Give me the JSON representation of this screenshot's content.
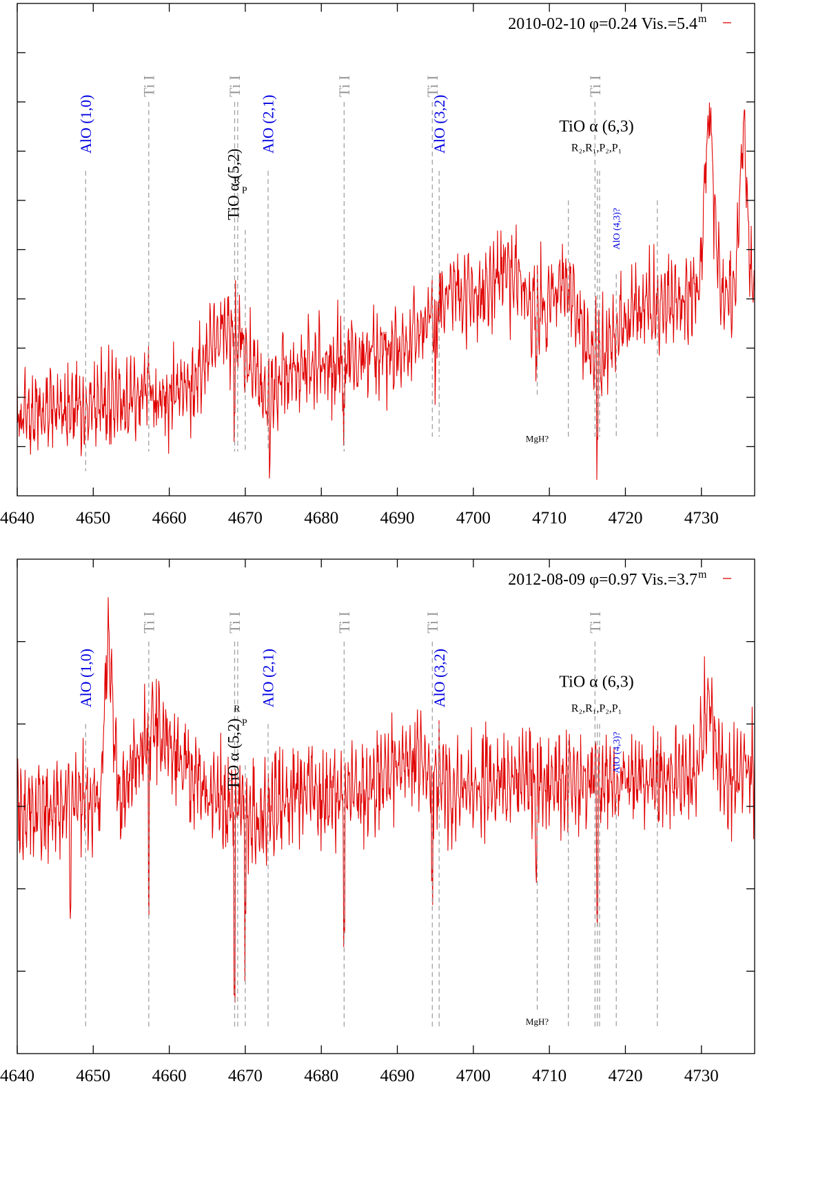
{
  "chart_data": [
    {
      "type": "line",
      "title": "2010-02-10 φ=0.24 Vis.=5.4",
      "title_superscript": "m",
      "legend_position": "top-right",
      "series_color": "#e00000",
      "xlim": [
        4640,
        4737
      ],
      "ylim": [
        0,
        10
      ],
      "grid": false,
      "x_ticks": [
        4640,
        4650,
        4660,
        4670,
        4680,
        4690,
        4700,
        4710,
        4720,
        4730
      ],
      "x_tick_labels": [
        "4640",
        "4650",
        "4660",
        "4670",
        "4680",
        "4690",
        "4700",
        "4710",
        "4720",
        "4730"
      ],
      "y_ticks": [
        1,
        2,
        3,
        4,
        5,
        6,
        7,
        8,
        9
      ],
      "series_shape": {
        "start": 1.6,
        "end": 4.2,
        "noise": 1.0,
        "seed": 7
      },
      "series_bumps": [
        {
          "x": 4667.5,
          "w": 2.2,
          "a": 1.1
        },
        {
          "x": 4673.0,
          "w": 1.0,
          "a": -0.6
        },
        {
          "x": 4697.5,
          "w": 2.5,
          "a": 1.0
        },
        {
          "x": 4704.5,
          "w": 2.5,
          "a": 1.2
        },
        {
          "x": 4712.0,
          "w": 1.5,
          "a": 0.8
        },
        {
          "x": 4716.5,
          "w": 2.0,
          "a": -0.8
        },
        {
          "x": 4731.0,
          "w": 0.6,
          "a": 3.5
        },
        {
          "x": 4735.5,
          "w": 0.5,
          "a": 3.2
        }
      ],
      "series_dips": [
        {
          "x": 4668.6,
          "d": 2.2
        },
        {
          "x": 4673.2,
          "d": 1.2
        },
        {
          "x": 4683.0,
          "d": 1.6
        },
        {
          "x": 4695.0,
          "d": 1.3
        },
        {
          "x": 4708.3,
          "d": 1.3
        },
        {
          "x": 4716.3,
          "d": 1.6
        }
      ],
      "line_markers": [
        {
          "x": 4649.0,
          "y_top": 6.6,
          "y_bottom": 0.5,
          "label": "AlO (1,0)",
          "label_y": 6.95,
          "color": "#0000e0",
          "size": 22,
          "rotate": true
        },
        {
          "x": 4657.3,
          "y_top": 8.0,
          "y_bottom": 0.9,
          "label": "Ti I",
          "label_y": 8.1,
          "color": "#999999",
          "size": 22,
          "rotate": true
        },
        {
          "x": 4668.6,
          "y_top": 8.0,
          "y_bottom": 0.9,
          "label": "Ti I",
          "label_y": 8.1,
          "color": "#999999",
          "size": 22,
          "rotate": true
        },
        {
          "x": 4669.0,
          "y_top": 8.0,
          "y_bottom": 0.9,
          "label": "",
          "label_y": 0,
          "color": "#999999",
          "size": 0,
          "rotate": false
        },
        {
          "x": 4670.0,
          "y_top": 5.4,
          "y_bottom": 0.9,
          "label": "",
          "label_y": 0,
          "color": "#999999",
          "size": 0,
          "rotate": false
        },
        {
          "x": 4673.0,
          "y_top": 6.6,
          "y_bottom": 0.9,
          "label": "AlO (2,1)",
          "label_y": 6.95,
          "color": "#0000e0",
          "size": 22,
          "rotate": true
        },
        {
          "x": 4683.0,
          "y_top": 8.0,
          "y_bottom": 0.9,
          "label": "Ti I",
          "label_y": 8.1,
          "color": "#999999",
          "size": 22,
          "rotate": true
        },
        {
          "x": 4694.6,
          "y_top": 8.0,
          "y_bottom": 1.2,
          "label": "Ti I",
          "label_y": 8.1,
          "color": "#999999",
          "size": 22,
          "rotate": true
        },
        {
          "x": 4695.5,
          "y_top": 6.6,
          "y_bottom": 1.2,
          "label": "AlO (3,2)",
          "label_y": 6.95,
          "color": "#0000e0",
          "size": 22,
          "rotate": true
        },
        {
          "x": 4708.4,
          "y_top": 4.5,
          "y_bottom": 2.0,
          "label": "",
          "label_y": 0,
          "color": "#999999",
          "size": 0,
          "rotate": false
        },
        {
          "x": 4712.5,
          "y_top": 6.0,
          "y_bottom": 1.2,
          "label": "",
          "label_y": 0,
          "color": "#999999",
          "size": 0,
          "rotate": false
        },
        {
          "x": 4716.0,
          "y_top": 8.0,
          "y_bottom": 1.2,
          "label": "Ti I",
          "label_y": 8.1,
          "color": "#999999",
          "size": 22,
          "rotate": true
        },
        {
          "x": 4716.3,
          "y_top": 6.6,
          "y_bottom": 1.2,
          "label": "",
          "label_y": 0,
          "color": "#999999",
          "size": 0,
          "rotate": false
        },
        {
          "x": 4716.6,
          "y_top": 6.6,
          "y_bottom": 1.2,
          "label": "",
          "label_y": 0,
          "color": "#999999",
          "size": 0,
          "rotate": false
        },
        {
          "x": 4718.8,
          "y_top": 4.5,
          "y_bottom": 1.2,
          "label": "AlO (4,3)?",
          "label_y": 5.0,
          "color": "#0000e0",
          "size": 14,
          "rotate": true
        },
        {
          "x": 4724.2,
          "y_top": 6.0,
          "y_bottom": 1.2,
          "label": "",
          "label_y": 0,
          "color": "#999999",
          "size": 0,
          "rotate": false
        }
      ],
      "annotations": [
        {
          "id": "tio52",
          "text": "TiO α (5,2)",
          "x": 4668.4,
          "y": 5.6,
          "rotate": true,
          "size": 23,
          "color": "#000000"
        },
        {
          "id": "tio52-r",
          "text": "R",
          "x": 4668.9,
          "y": 6.35,
          "rotate": false,
          "size": 14,
          "color": "#000000"
        },
        {
          "id": "tio52-p",
          "text": "P",
          "x": 4669.9,
          "y": 6.15,
          "rotate": false,
          "size": 14,
          "color": "#000000"
        },
        {
          "id": "tio63",
          "text": "TiO α (6,3)",
          "x": 4716.2,
          "y": 7.4,
          "rotate": false,
          "size": 24,
          "color": "#000000"
        },
        {
          "id": "tio63-branches",
          "text": "R₂,R₁,P₂,P₁",
          "x": 4716.2,
          "y": 7.0,
          "rotate": false,
          "size": 16,
          "color": "#000000"
        },
        {
          "id": "mgh",
          "text": "MgH?",
          "x": 4708.4,
          "y": 1.1,
          "rotate": false,
          "size": 13,
          "color": "#000000"
        }
      ]
    },
    {
      "type": "line",
      "title": "2012-08-09 φ=0.97 Vis.=3.7",
      "title_superscript": "m",
      "legend_position": "top-right",
      "series_color": "#e00000",
      "xlim": [
        4640,
        4737
      ],
      "ylim": [
        0,
        6
      ],
      "grid": false,
      "x_ticks": [
        4640,
        4650,
        4660,
        4670,
        4680,
        4690,
        4700,
        4710,
        4720,
        4730
      ],
      "x_tick_labels": [
        "4640",
        "4650",
        "4660",
        "4670",
        "4680",
        "4690",
        "4700",
        "4710",
        "4720",
        "4730"
      ],
      "y_ticks": [
        1,
        2,
        3,
        4,
        5
      ],
      "series_shape": {
        "start": 3.0,
        "end": 3.4,
        "noise": 0.65,
        "seed": 23
      },
      "series_bumps": [
        {
          "x": 4658.5,
          "w": 3.0,
          "a": 0.8
        },
        {
          "x": 4652.0,
          "w": 0.5,
          "a": 1.8
        },
        {
          "x": 4692.0,
          "w": 2.5,
          "a": 0.4
        },
        {
          "x": 4731.0,
          "w": 0.8,
          "a": 0.8
        },
        {
          "x": 4672.0,
          "w": 2.0,
          "a": -0.3
        }
      ],
      "series_dips": [
        {
          "x": 4647.0,
          "d": 1.1
        },
        {
          "x": 4657.3,
          "d": 2.4
        },
        {
          "x": 4668.6,
          "d": 2.3
        },
        {
          "x": 4670.0,
          "d": 1.3
        },
        {
          "x": 4683.0,
          "d": 2.0
        },
        {
          "x": 4694.6,
          "d": 1.5
        },
        {
          "x": 4708.3,
          "d": 0.9
        },
        {
          "x": 4716.3,
          "d": 1.4
        }
      ],
      "line_markers": [
        {
          "x": 4649.0,
          "y_top": 4.0,
          "y_bottom": 0.3,
          "label": "AlO (1,0)",
          "label_y": 4.2,
          "color": "#0000e0",
          "size": 22,
          "rotate": true
        },
        {
          "x": 4657.3,
          "y_top": 5.0,
          "y_bottom": 0.3,
          "label": "Ti I",
          "label_y": 5.1,
          "color": "#999999",
          "size": 22,
          "rotate": true
        },
        {
          "x": 4668.6,
          "y_top": 5.0,
          "y_bottom": 0.3,
          "label": "Ti I",
          "label_y": 5.1,
          "color": "#999999",
          "size": 22,
          "rotate": true
        },
        {
          "x": 4669.0,
          "y_top": 5.0,
          "y_bottom": 0.3,
          "label": "",
          "label_y": 0,
          "color": "#999999",
          "size": 0,
          "rotate": false
        },
        {
          "x": 4670.0,
          "y_top": 3.5,
          "y_bottom": 0.3,
          "label": "",
          "label_y": 0,
          "color": "#999999",
          "size": 0,
          "rotate": false
        },
        {
          "x": 4673.0,
          "y_top": 4.0,
          "y_bottom": 0.3,
          "label": "AlO (2,1)",
          "label_y": 4.2,
          "color": "#0000e0",
          "size": 22,
          "rotate": true
        },
        {
          "x": 4683.0,
          "y_top": 5.0,
          "y_bottom": 0.3,
          "label": "Ti I",
          "label_y": 5.1,
          "color": "#999999",
          "size": 22,
          "rotate": true
        },
        {
          "x": 4694.6,
          "y_top": 5.0,
          "y_bottom": 0.3,
          "label": "Ti I",
          "label_y": 5.1,
          "color": "#999999",
          "size": 22,
          "rotate": true
        },
        {
          "x": 4695.5,
          "y_top": 4.0,
          "y_bottom": 0.3,
          "label": "AlO (3,2)",
          "label_y": 4.2,
          "color": "#0000e0",
          "size": 22,
          "rotate": true
        },
        {
          "x": 4708.4,
          "y_top": 3.0,
          "y_bottom": 0.5,
          "label": "",
          "label_y": 0,
          "color": "#999999",
          "size": 0,
          "rotate": false
        },
        {
          "x": 4712.5,
          "y_top": 3.8,
          "y_bottom": 0.3,
          "label": "",
          "label_y": 0,
          "color": "#999999",
          "size": 0,
          "rotate": false
        },
        {
          "x": 4716.0,
          "y_top": 5.0,
          "y_bottom": 0.3,
          "label": "Ti I",
          "label_y": 5.1,
          "color": "#999999",
          "size": 22,
          "rotate": true
        },
        {
          "x": 4716.3,
          "y_top": 4.0,
          "y_bottom": 0.3,
          "label": "",
          "label_y": 0,
          "color": "#999999",
          "size": 0,
          "rotate": false
        },
        {
          "x": 4716.6,
          "y_top": 4.0,
          "y_bottom": 0.3,
          "label": "",
          "label_y": 0,
          "color": "#999999",
          "size": 0,
          "rotate": false
        },
        {
          "x": 4718.8,
          "y_top": 3.1,
          "y_bottom": 0.3,
          "label": "AlO (4,3)?",
          "label_y": 3.4,
          "color": "#0000e0",
          "size": 14,
          "rotate": true
        },
        {
          "x": 4724.2,
          "y_top": 3.8,
          "y_bottom": 0.3,
          "label": "",
          "label_y": 0,
          "color": "#999999",
          "size": 0,
          "rotate": false
        }
      ],
      "annotations": [
        {
          "id": "tio52",
          "text": "TiO α (5,2)",
          "x": 4668.4,
          "y": 3.2,
          "rotate": true,
          "size": 23,
          "color": "#000000"
        },
        {
          "id": "tio52-r",
          "text": "R",
          "x": 4668.9,
          "y": 4.15,
          "rotate": false,
          "size": 14,
          "color": "#000000"
        },
        {
          "id": "tio52-p",
          "text": "P",
          "x": 4669.9,
          "y": 3.98,
          "rotate": false,
          "size": 14,
          "color": "#000000"
        },
        {
          "id": "tio63",
          "text": "TiO α (6,3)",
          "x": 4716.2,
          "y": 4.45,
          "rotate": false,
          "size": 24,
          "color": "#000000"
        },
        {
          "id": "tio63-branches",
          "text": "R₂,R₁,P₂,P₁",
          "x": 4716.2,
          "y": 4.15,
          "rotate": false,
          "size": 16,
          "color": "#000000"
        },
        {
          "id": "mgh",
          "text": "MgH?",
          "x": 4708.4,
          "y": 0.35,
          "rotate": false,
          "size": 13,
          "color": "#000000"
        }
      ]
    }
  ]
}
